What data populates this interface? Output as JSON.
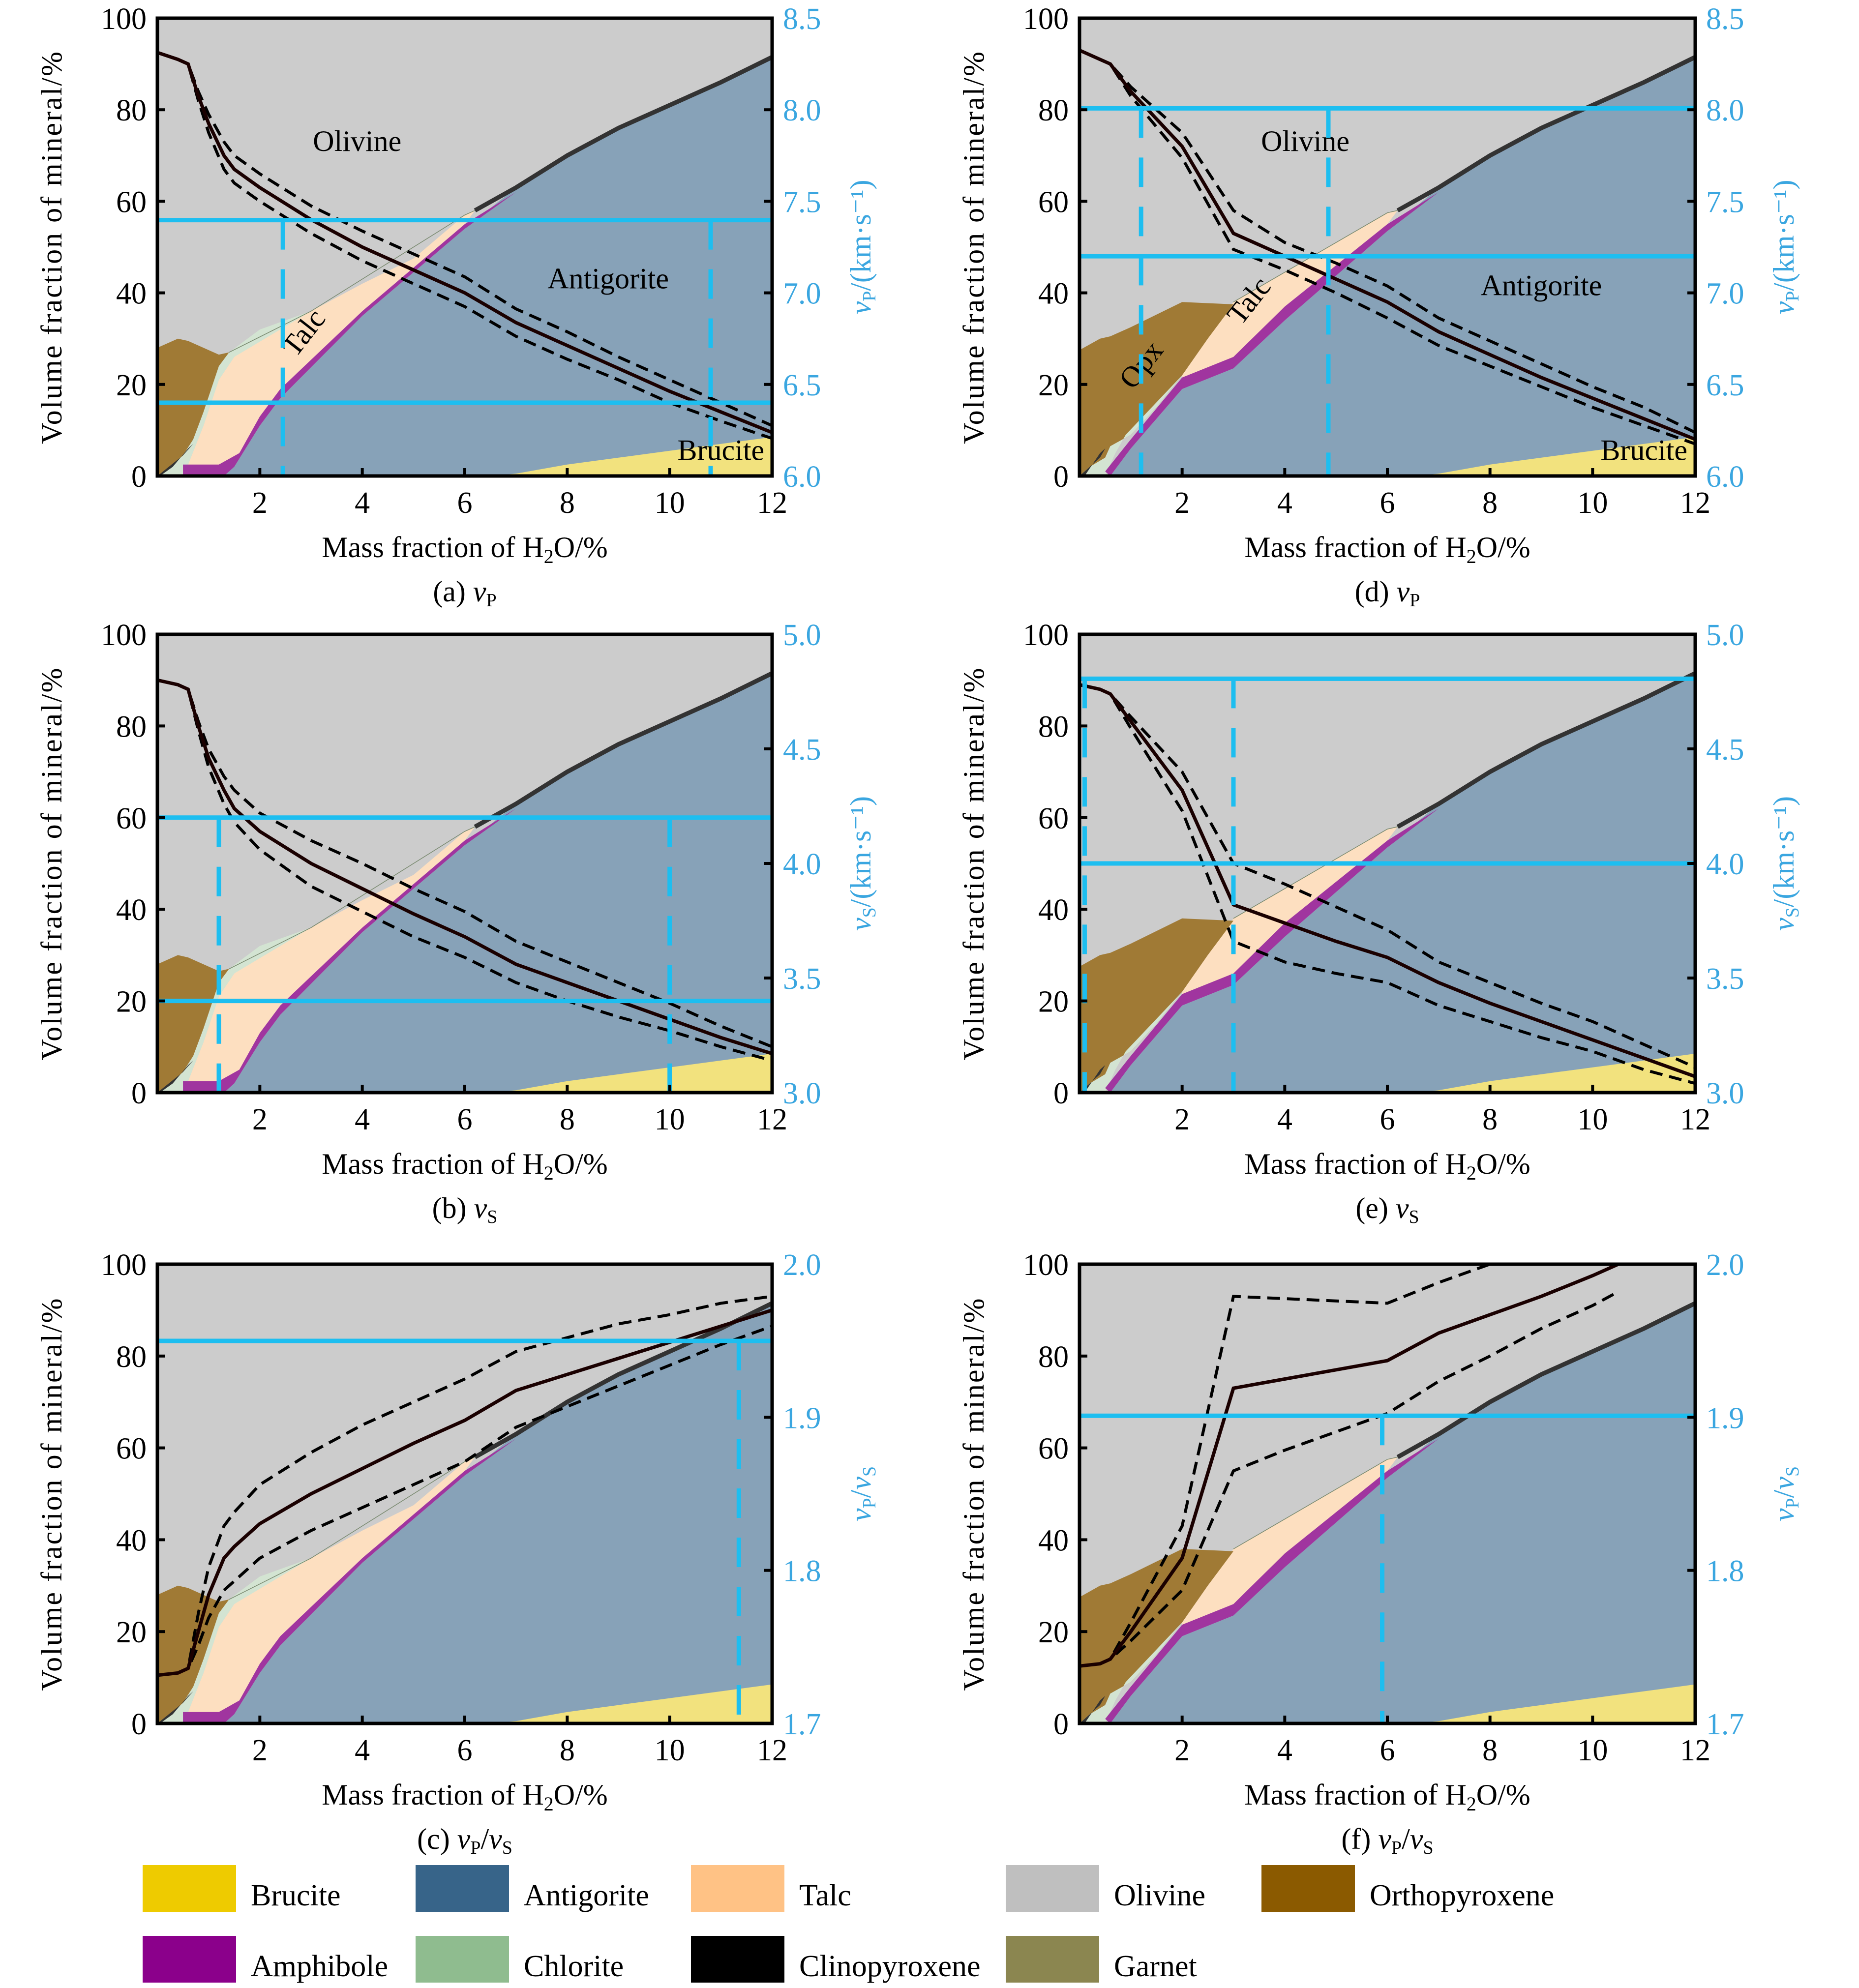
{
  "figure": {
    "x_axis_title": "Mass fraction of H₂O/%",
    "y_axis_title": "Volume fraction of mineral/%"
  },
  "colors": {
    "olivine_fill": "#CCCCCC",
    "antigorite_fill": "#87A2B8",
    "talc_fill": "#FDDFC0",
    "chlorite_fill": "#D3E4D2",
    "amphibole_fill": "#A0359F",
    "opx_fill": "#A07A35",
    "brucite_fill": "#F2E27E",
    "cpx_fill": "#333333",
    "boundary_line": "#333333",
    "velocity_line": "#000000",
    "reference_line": "#1DBEF0",
    "right_axis_text": "#3AA6E0"
  },
  "legend": {
    "items": [
      {
        "label": "Brucite",
        "color": "#EECB00"
      },
      {
        "label": "Antigorite",
        "color": "#376489"
      },
      {
        "label": "Talc",
        "color": "#FFC285"
      },
      {
        "label": "Olivine",
        "color": "#BFBFBF"
      },
      {
        "label": "Orthopyroxene",
        "color": "#8B5A00"
      },
      {
        "label": "Amphibole",
        "color": "#8B008B"
      },
      {
        "label": "Chlorite",
        "color": "#8FBC8F"
      },
      {
        "label": "Clinopyroxene",
        "color": "#000000"
      },
      {
        "label": "Garnet",
        "color": "#8B8650"
      }
    ]
  },
  "chart_data": [
    {
      "id": "a",
      "type": "area",
      "caption": "(a) vP",
      "caption_letter": "(a)",
      "caption_var": "v",
      "caption_sub": "P",
      "title": "",
      "xlabel": "Mass fraction of H2O/%",
      "ylabel": "Volume fraction of mineral/%",
      "xlim": [
        0,
        12
      ],
      "ylim": [
        0,
        100
      ],
      "x_ticks": [
        2,
        4,
        6,
        8,
        10,
        12
      ],
      "y_ticks": [
        0,
        20,
        40,
        60,
        80,
        100
      ],
      "right_axis": {
        "label": "vP/(km·s⁻¹)",
        "var": "v",
        "sub": "P",
        "unit": "/(km·s⁻¹)",
        "ylim": [
          6.0,
          8.5
        ],
        "ticks": [
          "6.0",
          "6.5",
          "7.0",
          "7.5",
          "8.0",
          "8.5"
        ]
      },
      "phase_model": "A",
      "region_labels": [
        {
          "text": "Olivine",
          "x": 3.9,
          "y": 71,
          "rotate": 0
        },
        {
          "text": "Antigorite",
          "x": 8.8,
          "y": 41,
          "rotate": 0
        },
        {
          "text": "Talc",
          "x": 3.0,
          "y": 30,
          "rotate": -52
        },
        {
          "text": "Brucite",
          "x": 11.0,
          "y": 3.5,
          "rotate": 0
        }
      ],
      "velocity_curve": {
        "x": [
          0,
          0.4,
          0.6,
          0.8,
          1.0,
          1.3,
          1.5,
          2,
          3,
          4,
          5,
          6,
          7,
          8,
          9,
          10,
          11,
          12
        ],
        "mean": [
          92.5,
          91,
          90,
          83,
          77,
          70,
          67,
          63,
          56,
          50,
          45,
          40,
          33.5,
          28.5,
          23.5,
          18.5,
          14,
          9.5
        ],
        "upper": [
          92.5,
          91,
          90,
          84,
          79,
          73,
          70,
          66,
          59,
          53.5,
          48.5,
          43.5,
          36.5,
          31.5,
          26,
          21,
          16,
          11
        ],
        "lower": [
          92.5,
          91,
          90,
          82,
          75,
          67,
          64,
          60,
          53,
          47,
          42,
          37,
          30.5,
          25.5,
          21,
          16,
          12,
          8.2
        ]
      },
      "reference_lines": {
        "horizontal_y": [
          55.9,
          16
        ],
        "vertical_x": [
          2.45,
          10.8
        ]
      }
    },
    {
      "id": "b",
      "type": "area",
      "caption": "(b) vS",
      "caption_letter": "(b)",
      "caption_var": "v",
      "caption_sub": "S",
      "xlabel": "Mass fraction of H2O/%",
      "ylabel": "Volume fraction of mineral/%",
      "xlim": [
        0,
        12
      ],
      "ylim": [
        0,
        100
      ],
      "x_ticks": [
        2,
        4,
        6,
        8,
        10,
        12
      ],
      "y_ticks": [
        0,
        20,
        40,
        60,
        80,
        100
      ],
      "right_axis": {
        "label": "vS/(km·s⁻¹)",
        "var": "v",
        "sub": "S",
        "unit": "/(km·s⁻¹)",
        "ylim": [
          3.0,
          5.0
        ],
        "ticks": [
          "3.0",
          "3.5",
          "4.0",
          "4.5",
          "5.0"
        ]
      },
      "phase_model": "A",
      "region_labels": [],
      "velocity_curve": {
        "x": [
          0,
          0.4,
          0.6,
          0.8,
          1.0,
          1.3,
          1.5,
          2,
          3,
          4,
          5,
          6,
          7,
          8,
          9,
          10,
          11,
          12
        ],
        "mean": [
          90,
          89,
          88,
          80,
          73,
          66,
          62,
          57,
          50,
          44.5,
          39,
          34,
          28,
          24,
          20,
          16,
          12,
          8.5
        ],
        "upper": [
          90,
          89,
          88,
          81,
          75,
          69,
          66,
          61,
          55,
          50,
          44.5,
          39.5,
          33,
          28.5,
          24,
          19.5,
          14.5,
          10
        ],
        "lower": [
          90,
          89,
          88,
          79,
          71,
          63,
          59,
          53,
          45,
          39.5,
          34,
          29.5,
          24,
          20,
          16.5,
          13.5,
          10,
          7
        ]
      },
      "reference_lines": {
        "horizontal_y": [
          60,
          20
        ],
        "vertical_x": [
          1.2,
          10
        ]
      }
    },
    {
      "id": "c",
      "type": "area",
      "caption": "(c) vP/vS",
      "caption_letter": "(c)",
      "caption_var": "v",
      "caption_sub": "P",
      "caption_var2": "v",
      "caption_sub2": "S",
      "xlabel": "Mass fraction of H2O/%",
      "ylabel": "Volume fraction of mineral/%",
      "xlim": [
        0,
        12
      ],
      "ylim": [
        0,
        100
      ],
      "x_ticks": [
        2,
        4,
        6,
        8,
        10,
        12
      ],
      "y_ticks": [
        0,
        20,
        40,
        60,
        80,
        100
      ],
      "right_axis": {
        "label": "vP/vS",
        "var": "v",
        "sub": "P",
        "var2": "v",
        "sub2": "S",
        "ylim": [
          1.7,
          2.0
        ],
        "ticks": [
          "1.7",
          "1.8",
          "1.9",
          "2.0"
        ]
      },
      "phase_model": "A",
      "region_labels": [],
      "velocity_curve": {
        "x": [
          0,
          0.4,
          0.6,
          0.8,
          1.0,
          1.3,
          1.5,
          2,
          3,
          4,
          5,
          6,
          7,
          8,
          9,
          10,
          11,
          12
        ],
        "mean": [
          10.5,
          11,
          12,
          20,
          28,
          36,
          38.5,
          43.5,
          50,
          55.5,
          61,
          66,
          72.5,
          76,
          79.5,
          83,
          86.5,
          90
        ],
        "upper": [
          10.5,
          11,
          12,
          24,
          34,
          43,
          46,
          52,
          59,
          65,
          70,
          75,
          81,
          84,
          87,
          89,
          91.5,
          93
        ],
        "lower": [
          10.5,
          11,
          12,
          17,
          23,
          29,
          31,
          36,
          42,
          47,
          52,
          57,
          64.5,
          69,
          73.5,
          78,
          82.5,
          86.5
        ]
      },
      "reference_lines": {
        "horizontal_y": [
          83.3
        ],
        "vertical_x": [
          11.35
        ]
      }
    },
    {
      "id": "d",
      "type": "area",
      "caption": "(d) vP",
      "caption_letter": "(d)",
      "caption_var": "v",
      "caption_sub": "P",
      "xlabel": "Mass fraction of H2O/%",
      "ylabel": "Volume fraction of mineral/%",
      "xlim": [
        0,
        12
      ],
      "ylim": [
        0,
        100
      ],
      "x_ticks": [
        2,
        4,
        6,
        8,
        10,
        12
      ],
      "y_ticks": [
        0,
        20,
        40,
        60,
        80,
        100
      ],
      "right_axis": {
        "label": "vP/(km·s⁻¹)",
        "var": "v",
        "sub": "P",
        "unit": "/(km·s⁻¹)",
        "ylim": [
          6.0,
          8.5
        ],
        "ticks": [
          "6.0",
          "6.5",
          "7.0",
          "7.5",
          "8.0",
          "8.5"
        ]
      },
      "phase_model": "B",
      "region_labels": [
        {
          "text": "Olivine",
          "x": 4.4,
          "y": 71,
          "rotate": 0
        },
        {
          "text": "Antigorite",
          "x": 9.0,
          "y": 39.5,
          "rotate": 0
        },
        {
          "text": "Talc",
          "x": 3.45,
          "y": 37,
          "rotate": -52
        },
        {
          "text": "Opx",
          "x": 1.35,
          "y": 23,
          "rotate": -52
        },
        {
          "text": "Brucite",
          "x": 11.0,
          "y": 3.5,
          "rotate": 0
        }
      ],
      "velocity_curve": {
        "x": [
          0,
          0.4,
          0.6,
          1,
          2,
          3,
          4,
          5,
          6,
          7,
          8,
          9,
          10,
          11,
          12
        ],
        "mean": [
          93,
          91,
          90,
          84,
          72,
          53,
          48,
          43,
          38,
          31.5,
          26.5,
          21.5,
          17,
          12.5,
          8
        ],
        "upper": [
          93,
          91,
          90,
          85,
          75,
          58,
          51,
          46.5,
          41.5,
          34.5,
          29.5,
          24.5,
          19.5,
          15,
          9.5
        ],
        "lower": [
          93,
          91,
          90,
          83,
          69.5,
          49.5,
          45,
          40,
          34.5,
          28.5,
          24,
          19.5,
          15,
          11,
          7
        ]
      },
      "reference_lines": {
        "horizontal_y": [
          80.3,
          48
        ],
        "vertical_x": [
          1.2,
          4.85
        ]
      }
    },
    {
      "id": "e",
      "type": "area",
      "caption": "(e) vS",
      "caption_letter": "(e)",
      "caption_var": "v",
      "caption_sub": "S",
      "xlabel": "Mass fraction of H2O/%",
      "ylabel": "Volume fraction of mineral/%",
      "xlim": [
        0,
        12
      ],
      "ylim": [
        0,
        100
      ],
      "x_ticks": [
        2,
        4,
        6,
        8,
        10,
        12
      ],
      "y_ticks": [
        0,
        20,
        40,
        60,
        80,
        100
      ],
      "right_axis": {
        "label": "vS/(km·s⁻¹)",
        "var": "v",
        "sub": "S",
        "unit": "/(km·s⁻¹)",
        "ylim": [
          3.0,
          5.0
        ],
        "ticks": [
          "3.0",
          "3.5",
          "4.0",
          "4.5",
          "5.0"
        ]
      },
      "phase_model": "B",
      "region_labels": [],
      "velocity_curve": {
        "x": [
          0,
          0.4,
          0.6,
          1,
          2,
          3,
          4,
          5,
          6,
          7,
          8,
          9,
          10,
          11,
          12
        ],
        "mean": [
          89,
          88,
          87,
          81,
          66,
          41,
          37,
          33,
          29.5,
          24,
          19.5,
          15.5,
          11.5,
          7.5,
          3.5
        ],
        "upper": [
          89,
          88,
          87,
          82,
          70,
          50,
          45.5,
          40.5,
          35.5,
          28.5,
          24,
          19.5,
          15.5,
          10.5,
          5.5
        ],
        "lower": [
          89,
          88,
          87,
          79.5,
          61.5,
          33,
          28.5,
          26,
          24,
          19,
          15.5,
          12,
          9,
          5,
          2
        ]
      },
      "reference_lines": {
        "horizontal_y": [
          90.3,
          50
        ],
        "vertical_x": [
          0.1,
          3.0
        ]
      }
    },
    {
      "id": "f",
      "type": "area",
      "caption": "(f) vP/vS",
      "caption_letter": "(f)",
      "caption_var": "v",
      "caption_sub": "P",
      "caption_var2": "v",
      "caption_sub2": "S",
      "xlabel": "Mass fraction of H2O/%",
      "ylabel": "Volume fraction of mineral/%",
      "xlim": [
        0,
        12
      ],
      "ylim": [
        0,
        100
      ],
      "x_ticks": [
        2,
        4,
        6,
        8,
        10,
        12
      ],
      "y_ticks": [
        0,
        20,
        40,
        60,
        80,
        100
      ],
      "right_axis": {
        "label": "vP/vS",
        "var": "v",
        "sub": "P",
        "var2": "v",
        "sub2": "S",
        "ylim": [
          1.7,
          2.0
        ],
        "ticks": [
          "1.7",
          "1.8",
          "1.9",
          "2.0"
        ]
      },
      "phase_model": "B",
      "region_labels": [],
      "velocity_curve": {
        "x": [
          0,
          0.4,
          0.6,
          1,
          2,
          3,
          4,
          5,
          6,
          7,
          8,
          9,
          10,
          10.5
        ],
        "mean": [
          12.5,
          13,
          14,
          20,
          36,
          73,
          75,
          77,
          79,
          85,
          89,
          93,
          97.5,
          100
        ],
        "upper": [
          12.5,
          13,
          14,
          22,
          43,
          93,
          92.5,
          92,
          91.5,
          96,
          100,
          100,
          100,
          100
        ],
        "lower": [
          12.5,
          13,
          14,
          18,
          29,
          55,
          59.5,
          63.5,
          67.5,
          74.5,
          80,
          86,
          91,
          94
        ]
      },
      "reference_lines": {
        "horizontal_y": [
          67
        ],
        "vertical_x": [
          5.9
        ]
      }
    }
  ]
}
